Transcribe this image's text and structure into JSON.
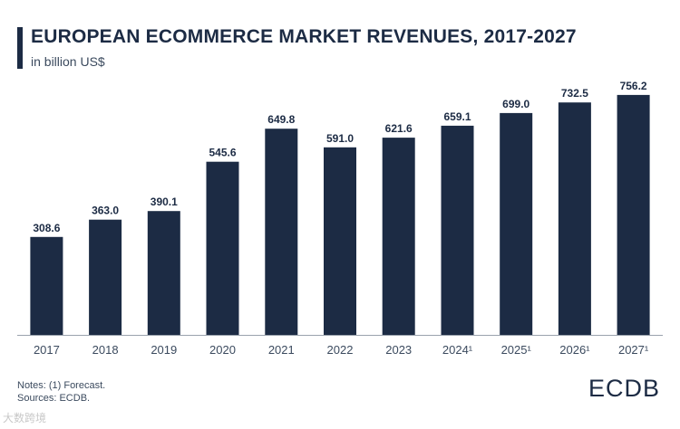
{
  "title": "EUROPEAN ECOMMERCE MARKET REVENUES, 2017-2027",
  "subtitle": "in billion US$",
  "notes": [
    "Notes: (1) Forecast.",
    "Sources: ECDB."
  ],
  "logo_text": "ECDB",
  "watermark_text": "大数跨境",
  "colors": {
    "bar": "#1c2b44",
    "axis": "#9aa3ad",
    "text": "#1c2b44"
  },
  "chart_data": {
    "type": "bar",
    "title": "EUROPEAN ECOMMERCE MARKET REVENUES, 2017-2027",
    "subtitle": "in billion US$",
    "categories": [
      "2017",
      "2018",
      "2019",
      "2020",
      "2021",
      "2022",
      "2023",
      "2024¹",
      "2025¹",
      "2026¹",
      "2027¹"
    ],
    "values": [
      308.6,
      363.0,
      390.1,
      545.6,
      649.8,
      591.0,
      621.6,
      659.1,
      699.0,
      732.5,
      756.2
    ],
    "value_labels": [
      "308.6",
      "363.0",
      "390.1",
      "545.6",
      "649.8",
      "591.0",
      "621.6",
      "659.1",
      "699.0",
      "732.5",
      "756.2"
    ],
    "xlabel": "",
    "ylabel": "",
    "ylim": [
      0,
      850
    ],
    "grid": false,
    "legend": "none"
  }
}
